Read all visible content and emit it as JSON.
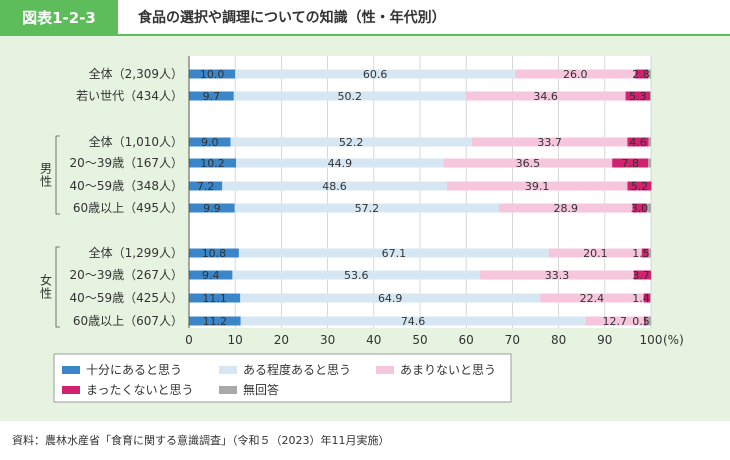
{
  "header": {
    "figure_label": "図表1-2-3",
    "title": "食品の選択や調理についての知識（性・年代別）"
  },
  "source": "資料：農林水産省「食育に関する意識調査」（令和５（2023）年11月実施）",
  "colors": {
    "header_green": "#5cbd5a",
    "panel_bg": "#e5f3e0",
    "series": [
      "#3a86c8",
      "#d6e7f3",
      "#f5c6dc",
      "#d0226f",
      "#aaaaaa"
    ]
  },
  "chart_data": {
    "type": "bar",
    "orientation": "horizontal",
    "stacked": true,
    "categories": [
      "全体（2,309人）",
      "若い世代（434人）",
      "全体（1,010人）",
      "20～39歳（167人）",
      "40～59歳（348人）",
      "60歳以上（495人）",
      "全体（1,299人）",
      "20～39歳（267人）",
      "40～59歳（425人）",
      "60歳以上（607人）"
    ],
    "groups": [
      {
        "label": "男性",
        "category_indices": [
          2,
          3,
          4,
          5
        ]
      },
      {
        "label": "女性",
        "category_indices": [
          6,
          7,
          8,
          9
        ]
      }
    ],
    "series": [
      {
        "name": "十分にあると思う",
        "values": [
          10.0,
          9.7,
          9.0,
          10.2,
          7.2,
          9.9,
          10.8,
          9.4,
          11.1,
          11.2
        ]
      },
      {
        "name": "ある程度あると思う",
        "values": [
          60.6,
          50.2,
          52.2,
          44.9,
          48.6,
          57.2,
          67.1,
          53.6,
          64.9,
          74.6
        ]
      },
      {
        "name": "あまりないと思う",
        "values": [
          26.0,
          34.6,
          33.7,
          36.5,
          39.1,
          28.9,
          20.1,
          33.3,
          22.4,
          12.7
        ]
      },
      {
        "name": "まったくないと思う",
        "values": [
          2.8,
          5.3,
          4.6,
          7.8,
          5.2,
          3.0,
          1.5,
          3.7,
          1.4,
          0.5
        ]
      },
      {
        "name": "無回答",
        "values": [
          0.6,
          0.2,
          0.5,
          0.6,
          0.0,
          1.0,
          0.5,
          0.0,
          0.2,
          1.0
        ]
      }
    ],
    "data_labels": [
      [
        "10.0",
        "60.6",
        "26.0",
        "2.8",
        ""
      ],
      [
        "9.7",
        "50.2",
        "34.6",
        "5.3",
        ""
      ],
      [
        "9.0",
        "52.2",
        "33.7",
        "4.6",
        ""
      ],
      [
        "10.2",
        "44.9",
        "36.5",
        "7.8",
        ""
      ],
      [
        "7.2",
        "48.6",
        "39.1",
        "5.2",
        ""
      ],
      [
        "9.9",
        "57.2",
        "28.9",
        "3.0",
        ""
      ],
      [
        "10.8",
        "67.1",
        "20.1",
        "1.5",
        ""
      ],
      [
        "9.4",
        "53.6",
        "33.3",
        "3.7",
        ""
      ],
      [
        "11.1",
        "64.9",
        "22.4",
        "1.4",
        ""
      ],
      [
        "11.2",
        "74.6",
        "12.7",
        "0.5",
        ""
      ]
    ],
    "x_ticks": [
      0,
      10,
      20,
      30,
      40,
      50,
      60,
      70,
      80,
      90,
      100
    ],
    "x_unit": "(%)",
    "xlim": [
      0,
      100
    ],
    "grid": "vertical",
    "legend": {
      "position": "bottom-left",
      "columns": 3
    }
  }
}
